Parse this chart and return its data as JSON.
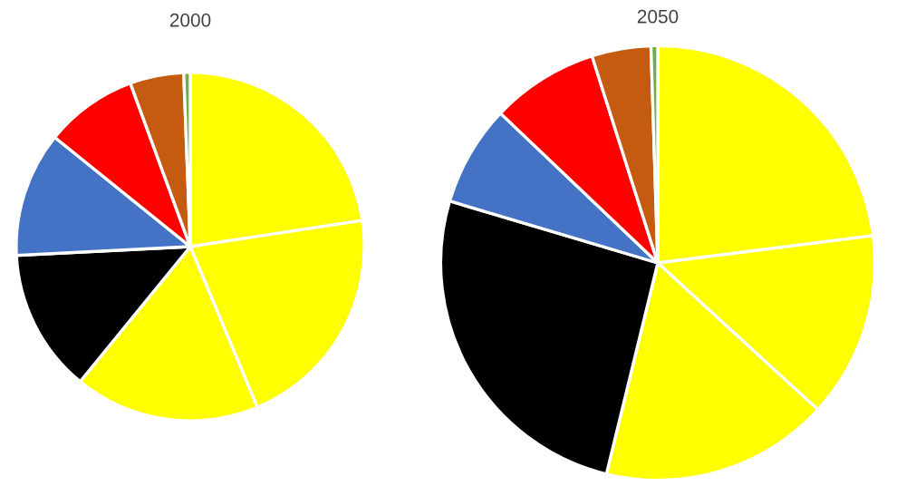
{
  "chart_data": [
    {
      "type": "pie",
      "title": "2000",
      "categories": [
        null,
        null,
        null,
        null,
        null,
        null,
        null,
        null
      ],
      "values": [
        22.6,
        21.1,
        17.2,
        13.3,
        11.6,
        8.6,
        5.0,
        0.6
      ],
      "colors": [
        "#ffff00",
        "#ffff00",
        "#ffff00",
        "#000000",
        "#4472c4",
        "#ff0000",
        "#c55a11",
        "#70ad47"
      ]
    },
    {
      "type": "pie",
      "title": "2050",
      "categories": [
        null,
        null,
        null,
        null,
        null,
        null,
        null,
        null
      ],
      "values": [
        23.0,
        13.8,
        17.0,
        25.8,
        7.5,
        8.0,
        4.4,
        0.5
      ],
      "colors": [
        "#ffff00",
        "#ffff00",
        "#ffff00",
        "#000000",
        "#4472c4",
        "#ff0000",
        "#c55a11",
        "#70ad47"
      ]
    }
  ]
}
